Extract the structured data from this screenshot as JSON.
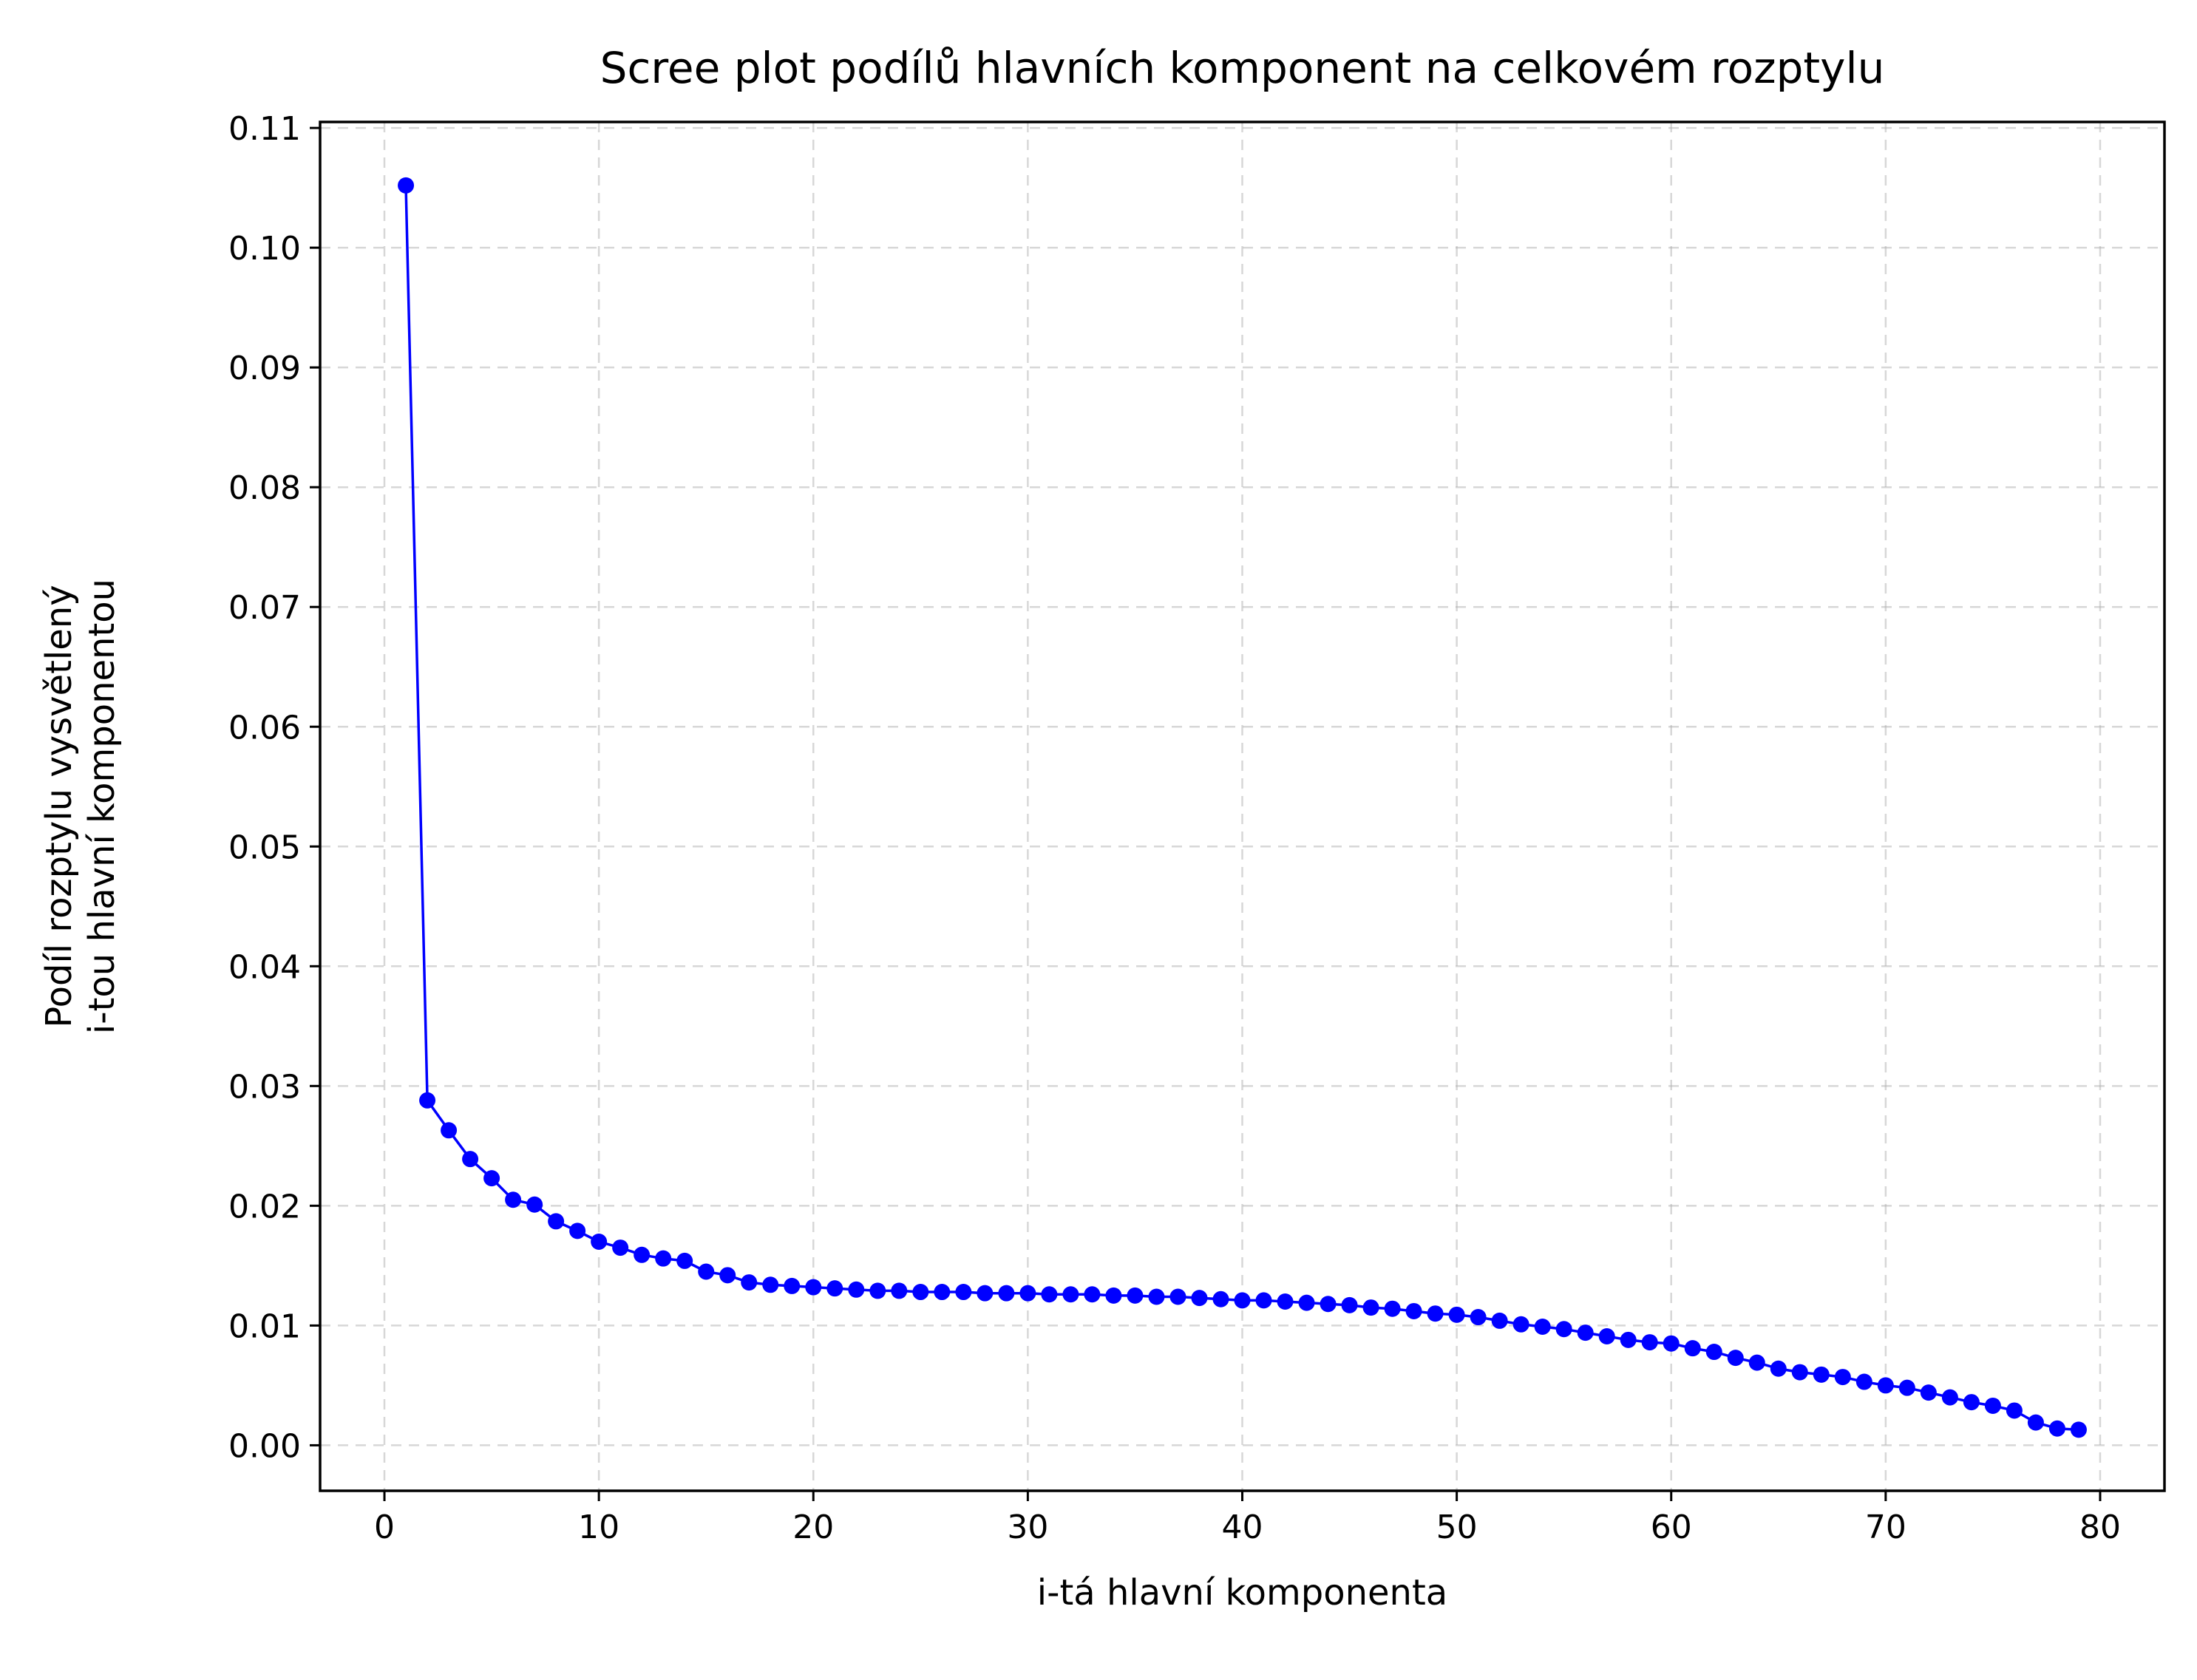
{
  "chart_data": {
    "type": "line",
    "title": "Scree plot podílů hlavních komponent na celkovém rozptylu",
    "xlabel": "i-tá hlavní komponenta",
    "ylabel_lines": [
      "Podíl rozptylu vysvětlený",
      "i-tou hlavní komponentou"
    ],
    "xlim": [
      -3,
      83
    ],
    "ylim": [
      -0.0038,
      0.1105
    ],
    "x_ticks": [
      0,
      10,
      20,
      30,
      40,
      50,
      60,
      70,
      80
    ],
    "x_tick_labels": [
      "0",
      "10",
      "20",
      "30",
      "40",
      "50",
      "60",
      "70",
      "80"
    ],
    "y_ticks": [
      0.0,
      0.01,
      0.02,
      0.03,
      0.04,
      0.05,
      0.06,
      0.07,
      0.08,
      0.09,
      0.1,
      0.11
    ],
    "y_tick_labels": [
      "0.00",
      "0.01",
      "0.02",
      "0.03",
      "0.04",
      "0.05",
      "0.06",
      "0.07",
      "0.08",
      "0.09",
      "0.10",
      "0.11"
    ],
    "grid": true,
    "series_color": "#0000ff",
    "grid_color": "#b0b0b0",
    "series": [
      {
        "x": [
          1,
          2,
          3,
          4,
          5,
          6,
          7,
          8,
          9,
          10,
          11,
          12,
          13,
          14,
          15,
          16,
          17,
          18,
          19,
          20,
          21,
          22,
          23,
          24,
          25,
          26,
          27,
          28,
          29,
          30,
          31,
          32,
          33,
          34,
          35,
          36,
          37,
          38,
          39,
          40,
          41,
          42,
          43,
          44,
          45,
          46,
          47,
          48,
          49,
          50,
          51,
          52,
          53,
          54,
          55,
          56,
          57,
          58,
          59,
          60,
          61,
          62,
          63,
          64,
          65,
          66,
          67,
          68,
          69,
          70,
          71,
          72,
          73,
          74,
          75,
          76,
          77,
          78,
          79
        ],
        "values": [
          0.1052,
          0.0288,
          0.0263,
          0.0239,
          0.0223,
          0.0205,
          0.0201,
          0.0187,
          0.0179,
          0.017,
          0.0165,
          0.0159,
          0.0156,
          0.0154,
          0.0145,
          0.0142,
          0.0136,
          0.0134,
          0.0133,
          0.0132,
          0.0131,
          0.013,
          0.0129,
          0.0129,
          0.0128,
          0.0128,
          0.0128,
          0.0127,
          0.0127,
          0.0127,
          0.0126,
          0.0126,
          0.0126,
          0.0125,
          0.0125,
          0.0124,
          0.0124,
          0.0123,
          0.0122,
          0.0121,
          0.0121,
          0.012,
          0.0119,
          0.0118,
          0.0117,
          0.0115,
          0.0114,
          0.0112,
          0.011,
          0.0109,
          0.0107,
          0.0104,
          0.0101,
          0.0099,
          0.0097,
          0.0094,
          0.0091,
          0.0088,
          0.0086,
          0.0085,
          0.0081,
          0.0078,
          0.0073,
          0.0069,
          0.0064,
          0.0061,
          0.0059,
          0.0057,
          0.0053,
          0.005,
          0.0048,
          0.0044,
          0.004,
          0.0036,
          0.0033,
          0.0029,
          0.0019,
          0.0014,
          0.0013
        ]
      }
    ]
  }
}
